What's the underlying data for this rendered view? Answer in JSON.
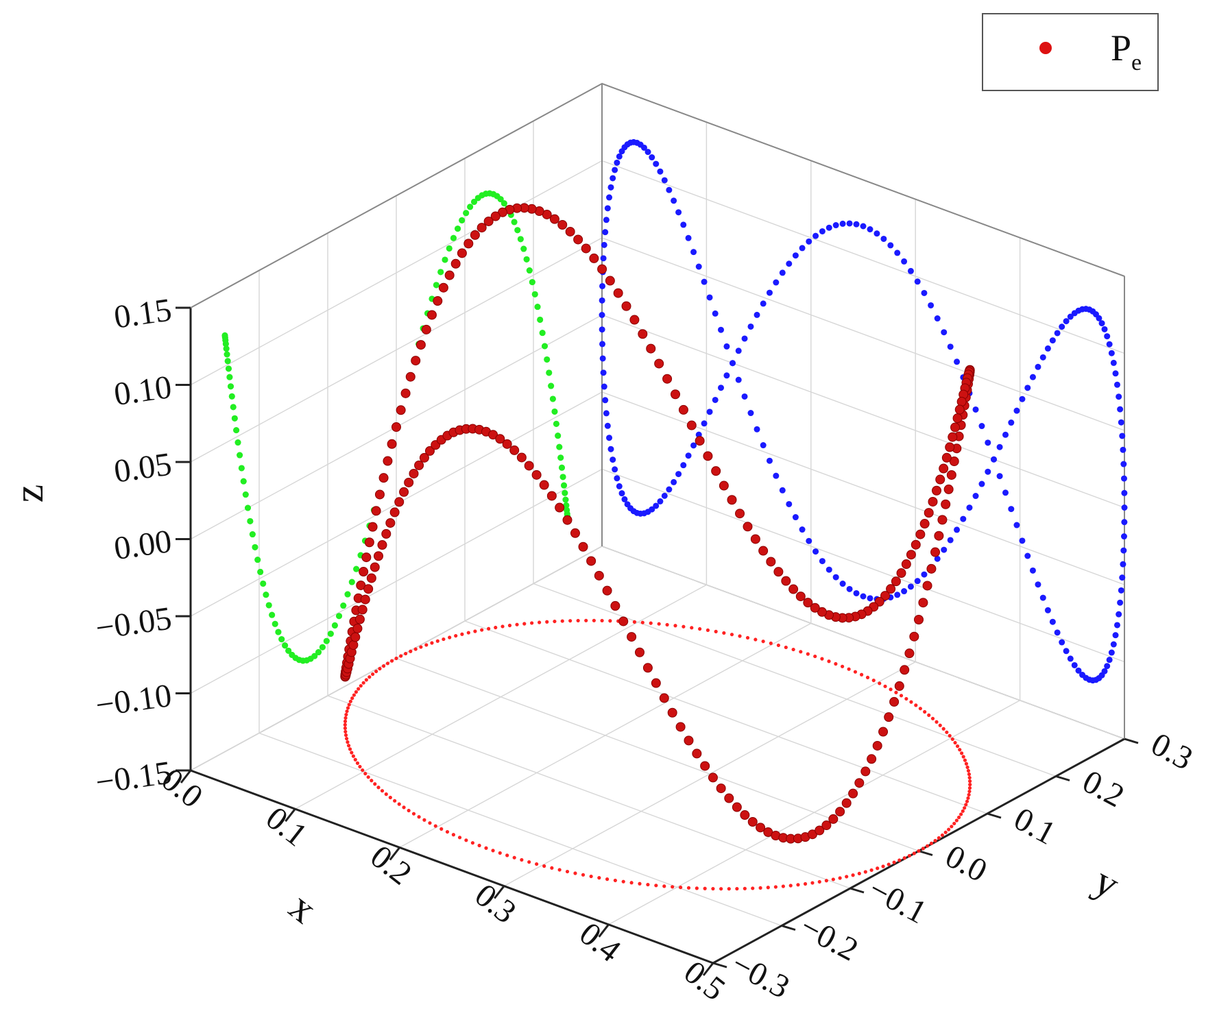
{
  "chart_data": {
    "type": "scatter3d",
    "axes": {
      "x": {
        "label": "x",
        "ticks": [
          "0.0",
          "0.1",
          "0.2",
          "0.3",
          "0.4",
          "0.5"
        ],
        "range": [
          0.0,
          0.5
        ]
      },
      "y": {
        "label": "y",
        "ticks": [
          "−0.3",
          "−0.2",
          "−0.1",
          "0.0",
          "0.1",
          "0.2",
          "0.3"
        ],
        "range": [
          -0.3,
          0.3
        ]
      },
      "z": {
        "label": "z",
        "ticks": [
          "−0.15",
          "−0.10",
          "−0.05",
          "0.00",
          "0.05",
          "0.10",
          "0.15"
        ],
        "range": [
          -0.15,
          0.15
        ]
      }
    },
    "grid": true,
    "legend": {
      "placement": "top-right",
      "entries": [
        {
          "name": "P",
          "subscript": "e",
          "color": "#dd1111"
        }
      ]
    },
    "trajectory": {
      "description_of_values": "parametric curve, t in [0, 2π)",
      "x_center": 0.25,
      "x_amplitude": 0.25,
      "y_amplitude": 0.25,
      "z_amplitude": 0.12,
      "x_frequency": 1,
      "y_frequency": 1,
      "z_frequency": 3
    },
    "projections": [
      {
        "plane": "xz",
        "color": "#1a1aff"
      },
      {
        "plane": "yz",
        "color": "#22ee22"
      },
      {
        "plane": "xy",
        "color": "#ff2222"
      }
    ],
    "series_color": "#cc1111"
  }
}
